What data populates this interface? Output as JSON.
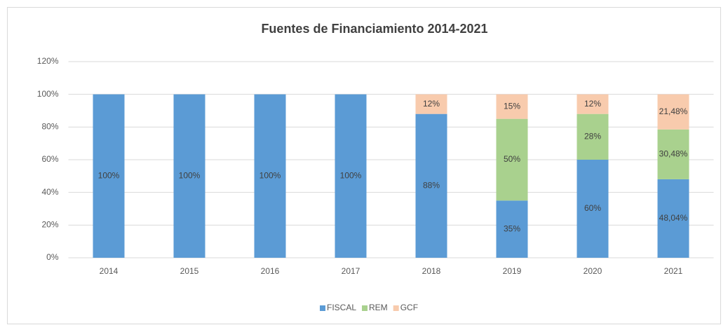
{
  "chart_data": {
    "type": "stacked_bar",
    "title": "Fuentes de Financiamiento 2014-2021",
    "categories": [
      "2014",
      "2015",
      "2016",
      "2017",
      "2018",
      "2019",
      "2020",
      "2021"
    ],
    "series": [
      {
        "name": "FISCAL",
        "color": "#5b9bd5",
        "values": [
          100,
          100,
          100,
          100,
          88,
          35,
          60,
          48.04
        ],
        "value_labels": [
          "100%",
          "100%",
          "100%",
          "100%",
          "88%",
          "35%",
          "60%",
          "48,04%"
        ]
      },
      {
        "name": "REM",
        "color": "#a9d18e",
        "values": [
          null,
          null,
          null,
          null,
          null,
          50,
          28,
          30.48
        ],
        "value_labels": [
          null,
          null,
          null,
          null,
          null,
          "50%",
          "28%",
          "30,48%"
        ]
      },
      {
        "name": "GCF",
        "color": "#f8cbad",
        "values": [
          null,
          null,
          null,
          null,
          12,
          15,
          12,
          21.48
        ],
        "value_labels": [
          null,
          null,
          null,
          null,
          "12%",
          "15%",
          "12%",
          "21,48%"
        ]
      }
    ],
    "ylim": [
      0,
      120
    ],
    "yticks": [
      {
        "value": 0,
        "label": "0%"
      },
      {
        "value": 20,
        "label": "20%"
      },
      {
        "value": 40,
        "label": "40%"
      },
      {
        "value": 60,
        "label": "60%"
      },
      {
        "value": 80,
        "label": "80%"
      },
      {
        "value": 100,
        "label": "100%"
      },
      {
        "value": 120,
        "label": "120%"
      }
    ],
    "grid": true,
    "legend": "bottom"
  }
}
